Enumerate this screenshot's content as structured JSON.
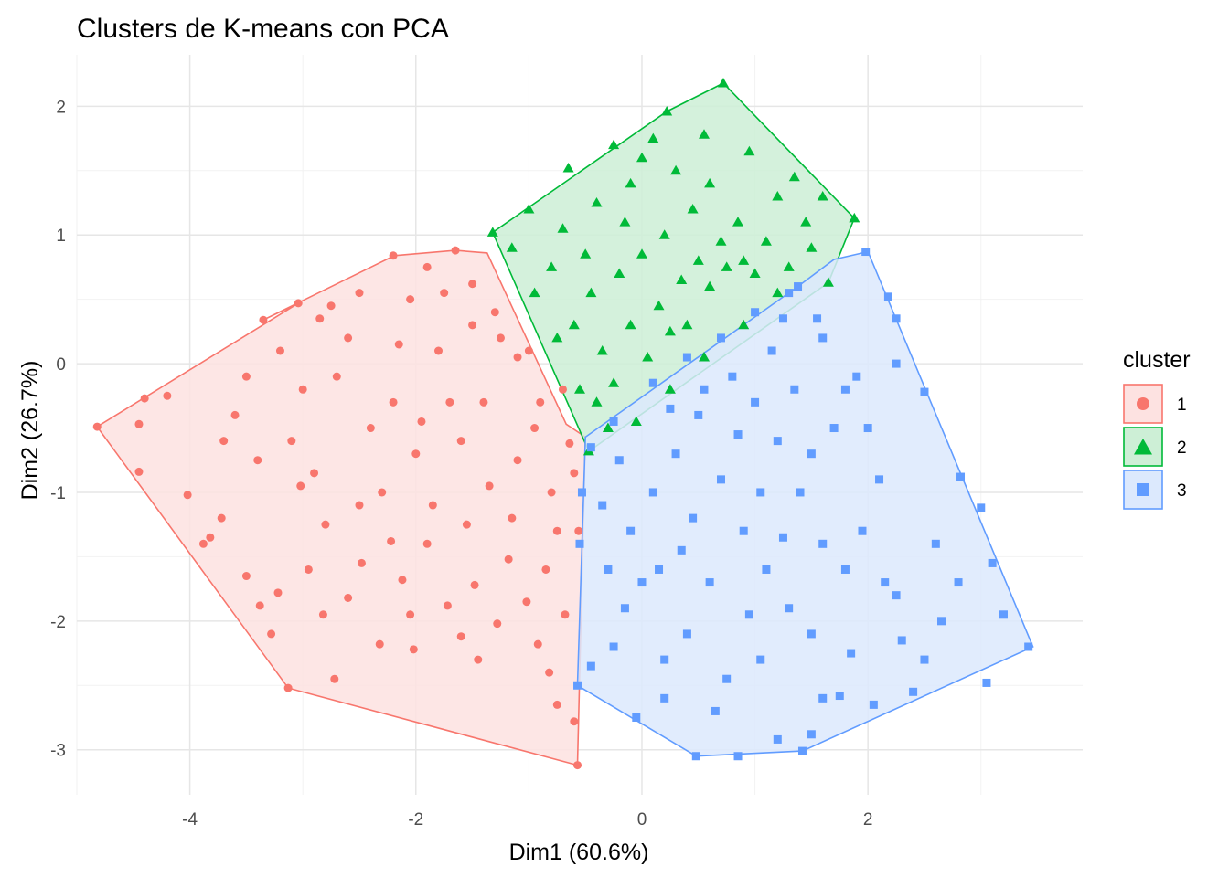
{
  "chart_data": {
    "type": "scatter",
    "title": "Clusters de K-means con PCA",
    "xlabel": "Dim1 (60.6%)",
    "ylabel": "Dim2 (26.7%)",
    "xlim": [
      -5.0,
      3.9
    ],
    "ylim": [
      -3.35,
      2.4
    ],
    "x_ticks": [
      -4,
      -2,
      0,
      2
    ],
    "y_ticks": [
      -3,
      -2,
      -1,
      0,
      1,
      2
    ],
    "x_tick_labels": [
      "-4",
      "-2",
      "0",
      "2"
    ],
    "y_tick_labels": [
      "-3",
      "-2",
      "-1",
      "0",
      "1",
      "2"
    ],
    "grid": true,
    "legend": {
      "title": "cluster",
      "position": "right",
      "entries": [
        "1",
        "2",
        "3"
      ]
    },
    "series": [
      {
        "name": "1",
        "marker": "circle",
        "color": "#F8766D",
        "fill": "#FDE2E1",
        "hull": [
          [
            -4.82,
            -0.49
          ],
          [
            -3.13,
            -2.52
          ],
          [
            -0.57,
            -3.12
          ],
          [
            -0.5,
            -0.57
          ],
          [
            -0.67,
            -0.47
          ],
          [
            -1.37,
            0.86
          ],
          [
            -1.65,
            0.88
          ],
          [
            -2.19,
            0.84
          ],
          [
            -3.35,
            0.34
          ],
          [
            -3.04,
            0.47
          ]
        ],
        "points": [
          [
            -4.82,
            -0.49
          ],
          [
            -4.45,
            -0.47
          ],
          [
            -4.45,
            -0.84
          ],
          [
            -4.4,
            -0.27
          ],
          [
            -4.2,
            -0.25
          ],
          [
            -4.02,
            -1.02
          ],
          [
            -3.88,
            -1.4
          ],
          [
            -3.82,
            -1.35
          ],
          [
            -3.72,
            -1.2
          ],
          [
            -3.6,
            -0.4
          ],
          [
            -3.5,
            -1.65
          ],
          [
            -3.38,
            -1.88
          ],
          [
            -3.28,
            -2.1
          ],
          [
            -3.22,
            -1.78
          ],
          [
            -3.13,
            -2.52
          ],
          [
            -3.02,
            -0.95
          ],
          [
            -2.95,
            -1.6
          ],
          [
            -2.82,
            -1.95
          ],
          [
            -2.72,
            -2.45
          ],
          [
            -2.6,
            -1.82
          ],
          [
            -2.48,
            -1.55
          ],
          [
            -2.32,
            -2.18
          ],
          [
            -2.22,
            -1.38
          ],
          [
            -2.12,
            -1.68
          ],
          [
            -2.02,
            -2.22
          ],
          [
            -1.85,
            -1.1
          ],
          [
            -1.72,
            -1.88
          ],
          [
            -1.6,
            -2.12
          ],
          [
            -1.48,
            -1.72
          ],
          [
            -1.28,
            -2.02
          ],
          [
            -1.18,
            -1.52
          ],
          [
            -1.02,
            -1.85
          ],
          [
            -0.92,
            -2.18
          ],
          [
            -0.82,
            -2.4
          ],
          [
            -0.75,
            -2.65
          ],
          [
            -0.68,
            -1.95
          ],
          [
            -0.6,
            -2.78
          ],
          [
            -0.57,
            -3.12
          ],
          [
            -0.56,
            -1.3
          ],
          [
            -0.6,
            -0.85
          ],
          [
            -0.64,
            -0.62
          ],
          [
            -0.9,
            -0.3
          ],
          [
            -1.1,
            0.05
          ],
          [
            -1.3,
            0.4
          ],
          [
            -1.5,
            0.62
          ],
          [
            -1.65,
            0.88
          ],
          [
            -1.9,
            0.75
          ],
          [
            -2.2,
            0.84
          ],
          [
            -2.5,
            0.55
          ],
          [
            -2.85,
            0.35
          ],
          [
            -3.35,
            0.34
          ],
          [
            -3.04,
            0.47
          ],
          [
            -3.2,
            0.1
          ],
          [
            -3.5,
            -0.1
          ],
          [
            -3.7,
            -0.6
          ],
          [
            -2.9,
            -0.85
          ],
          [
            -2.7,
            -0.1
          ],
          [
            -2.4,
            -0.5
          ],
          [
            -2.2,
            -0.3
          ],
          [
            -1.95,
            -0.45
          ],
          [
            -1.8,
            0.1
          ],
          [
            -1.6,
            -0.6
          ],
          [
            -1.4,
            -0.3
          ],
          [
            -1.25,
            0.2
          ],
          [
            -1.1,
            -0.75
          ],
          [
            -0.95,
            -0.5
          ],
          [
            -0.8,
            -1.0
          ],
          [
            -1.0,
            0.1
          ],
          [
            -1.5,
            0.3
          ],
          [
            -2.05,
            0.5
          ],
          [
            -2.6,
            0.2
          ],
          [
            -3.0,
            -0.2
          ],
          [
            -2.3,
            -1.0
          ],
          [
            -2.0,
            -0.7
          ],
          [
            -1.7,
            -0.3
          ],
          [
            -1.35,
            -0.95
          ],
          [
            -1.15,
            -1.2
          ],
          [
            -1.9,
            -1.4
          ],
          [
            -2.5,
            -1.1
          ],
          [
            -3.1,
            -0.6
          ],
          [
            -2.8,
            -1.25
          ],
          [
            -1.55,
            -1.25
          ],
          [
            -0.75,
            -1.3
          ],
          [
            -0.7,
            -0.2
          ],
          [
            -2.15,
            0.15
          ],
          [
            -2.75,
            0.45
          ],
          [
            -1.75,
            0.55
          ],
          [
            -3.4,
            -0.75
          ],
          [
            -2.05,
            -1.95
          ],
          [
            -1.45,
            -2.3
          ],
          [
            -0.85,
            -1.6
          ]
        ]
      },
      {
        "name": "2",
        "marker": "triangle",
        "color": "#00BA38",
        "fill": "#CDEFD6",
        "hull": [
          [
            -1.32,
            1.02
          ],
          [
            -0.47,
            -0.68
          ],
          [
            1.65,
            0.63
          ],
          [
            1.88,
            1.13
          ],
          [
            0.72,
            2.18
          ],
          [
            0.22,
            1.96
          ]
        ],
        "points": [
          [
            -1.32,
            1.02
          ],
          [
            -0.47,
            -0.68
          ],
          [
            1.65,
            0.63
          ],
          [
            1.88,
            1.13
          ],
          [
            0.72,
            2.18
          ],
          [
            0.22,
            1.96
          ],
          [
            -0.65,
            1.52
          ],
          [
            -0.25,
            1.7
          ],
          [
            0.1,
            1.75
          ],
          [
            0.55,
            1.78
          ],
          [
            0.95,
            1.65
          ],
          [
            1.35,
            1.45
          ],
          [
            1.6,
            1.3
          ],
          [
            1.5,
            0.9
          ],
          [
            1.2,
            0.55
          ],
          [
            0.9,
            0.3
          ],
          [
            0.55,
            0.05
          ],
          [
            0.25,
            -0.2
          ],
          [
            -0.05,
            -0.45
          ],
          [
            -0.3,
            -0.5
          ],
          [
            -0.55,
            -0.2
          ],
          [
            -0.75,
            0.2
          ],
          [
            -0.95,
            0.55
          ],
          [
            -1.15,
            0.9
          ],
          [
            -1.0,
            1.2
          ],
          [
            -0.7,
            1.05
          ],
          [
            -0.4,
            1.25
          ],
          [
            -0.1,
            1.4
          ],
          [
            0.3,
            1.5
          ],
          [
            0.6,
            1.4
          ],
          [
            0.85,
            1.1
          ],
          [
            1.1,
            0.95
          ],
          [
            1.3,
            0.75
          ],
          [
            1.0,
            0.7
          ],
          [
            0.75,
            0.75
          ],
          [
            0.5,
            0.8
          ],
          [
            0.35,
            0.65
          ],
          [
            0.6,
            0.6
          ],
          [
            0.9,
            0.8
          ],
          [
            0.2,
            1.0
          ],
          [
            0.0,
            0.85
          ],
          [
            -0.2,
            0.7
          ],
          [
            -0.45,
            0.55
          ],
          [
            -0.6,
            0.3
          ],
          [
            -0.35,
            0.1
          ],
          [
            -0.1,
            0.3
          ],
          [
            0.15,
            0.45
          ],
          [
            0.4,
            0.3
          ],
          [
            0.05,
            0.05
          ],
          [
            -0.25,
            -0.15
          ],
          [
            -0.5,
            0.85
          ],
          [
            -0.8,
            0.75
          ],
          [
            0.0,
            1.6
          ],
          [
            0.45,
            1.2
          ],
          [
            0.7,
            0.95
          ],
          [
            1.45,
            1.1
          ],
          [
            1.2,
            1.3
          ],
          [
            -0.15,
            1.1
          ],
          [
            0.25,
            0.25
          ],
          [
            -0.4,
            -0.3
          ]
        ]
      },
      {
        "name": "3",
        "marker": "square",
        "color": "#619CFF",
        "fill": "#DCE9FD",
        "hull": [
          [
            -0.5,
            -0.57
          ],
          [
            -0.57,
            -2.5
          ],
          [
            0.48,
            -3.05
          ],
          [
            1.42,
            -3.01
          ],
          [
            3.46,
            -2.2
          ],
          [
            2.0,
            0.87
          ],
          [
            1.7,
            0.81
          ],
          [
            1.38,
            0.6
          ]
        ],
        "points": [
          [
            1.98,
            0.87
          ],
          [
            2.18,
            0.52
          ],
          [
            2.25,
            0.35
          ],
          [
            2.25,
            0.0
          ],
          [
            2.5,
            -0.22
          ],
          [
            2.82,
            -0.88
          ],
          [
            3.0,
            -1.12
          ],
          [
            3.1,
            -1.55
          ],
          [
            3.42,
            -2.2
          ],
          [
            3.2,
            -1.95
          ],
          [
            3.05,
            -2.48
          ],
          [
            2.65,
            -2.0
          ],
          [
            2.5,
            -2.3
          ],
          [
            2.4,
            -2.55
          ],
          [
            2.05,
            -2.65
          ],
          [
            1.85,
            -2.25
          ],
          [
            1.75,
            -2.58
          ],
          [
            1.5,
            -2.88
          ],
          [
            1.42,
            -3.01
          ],
          [
            1.2,
            -2.92
          ],
          [
            0.85,
            -3.05
          ],
          [
            0.48,
            -3.05
          ],
          [
            0.2,
            -2.6
          ],
          [
            -0.05,
            -2.75
          ],
          [
            -0.25,
            -2.2
          ],
          [
            -0.45,
            -2.35
          ],
          [
            -0.57,
            -2.5
          ],
          [
            -0.55,
            -1.4
          ],
          [
            -0.53,
            -1.0
          ],
          [
            -0.45,
            -0.65
          ],
          [
            -0.25,
            -0.45
          ],
          [
            0.1,
            -0.15
          ],
          [
            0.4,
            0.05
          ],
          [
            0.7,
            0.2
          ],
          [
            1.0,
            0.4
          ],
          [
            1.3,
            0.55
          ],
          [
            1.38,
            0.6
          ],
          [
            1.6,
            0.2
          ],
          [
            1.8,
            -0.2
          ],
          [
            2.0,
            -0.5
          ],
          [
            2.1,
            -0.9
          ],
          [
            1.95,
            -1.3
          ],
          [
            2.15,
            -1.7
          ],
          [
            2.25,
            -1.8
          ],
          [
            1.8,
            -1.6
          ],
          [
            1.6,
            -1.4
          ],
          [
            1.4,
            -1.0
          ],
          [
            1.2,
            -0.6
          ],
          [
            1.0,
            -0.3
          ],
          [
            0.8,
            -0.1
          ],
          [
            0.5,
            -0.4
          ],
          [
            0.3,
            -0.7
          ],
          [
            0.1,
            -1.0
          ],
          [
            -0.1,
            -1.3
          ],
          [
            -0.3,
            -1.6
          ],
          [
            -0.15,
            -1.9
          ],
          [
            0.15,
            -1.6
          ],
          [
            0.45,
            -1.2
          ],
          [
            0.7,
            -0.9
          ],
          [
            0.9,
            -1.3
          ],
          [
            1.1,
            -1.6
          ],
          [
            1.3,
            -1.9
          ],
          [
            1.5,
            -2.1
          ],
          [
            1.05,
            -2.3
          ],
          [
            0.75,
            -2.45
          ],
          [
            0.4,
            -2.1
          ],
          [
            0.2,
            -2.3
          ],
          [
            0.0,
            -1.7
          ],
          [
            -0.35,
            -1.1
          ],
          [
            0.6,
            -1.7
          ],
          [
            0.95,
            -1.95
          ],
          [
            1.25,
            -1.35
          ],
          [
            1.5,
            -0.7
          ],
          [
            1.7,
            -0.5
          ],
          [
            1.15,
            0.1
          ],
          [
            0.85,
            -0.55
          ],
          [
            0.55,
            -0.2
          ],
          [
            0.25,
            -0.35
          ],
          [
            1.35,
            -0.2
          ],
          [
            1.55,
            0.35
          ],
          [
            1.05,
            -1.0
          ],
          [
            0.35,
            -1.45
          ],
          [
            -0.2,
            -0.75
          ],
          [
            0.65,
            -2.7
          ],
          [
            1.6,
            -2.6
          ],
          [
            2.3,
            -2.15
          ],
          [
            2.8,
            -1.7
          ],
          [
            2.6,
            -1.4
          ],
          [
            1.9,
            -0.1
          ],
          [
            1.25,
            0.35
          ]
        ]
      }
    ]
  }
}
